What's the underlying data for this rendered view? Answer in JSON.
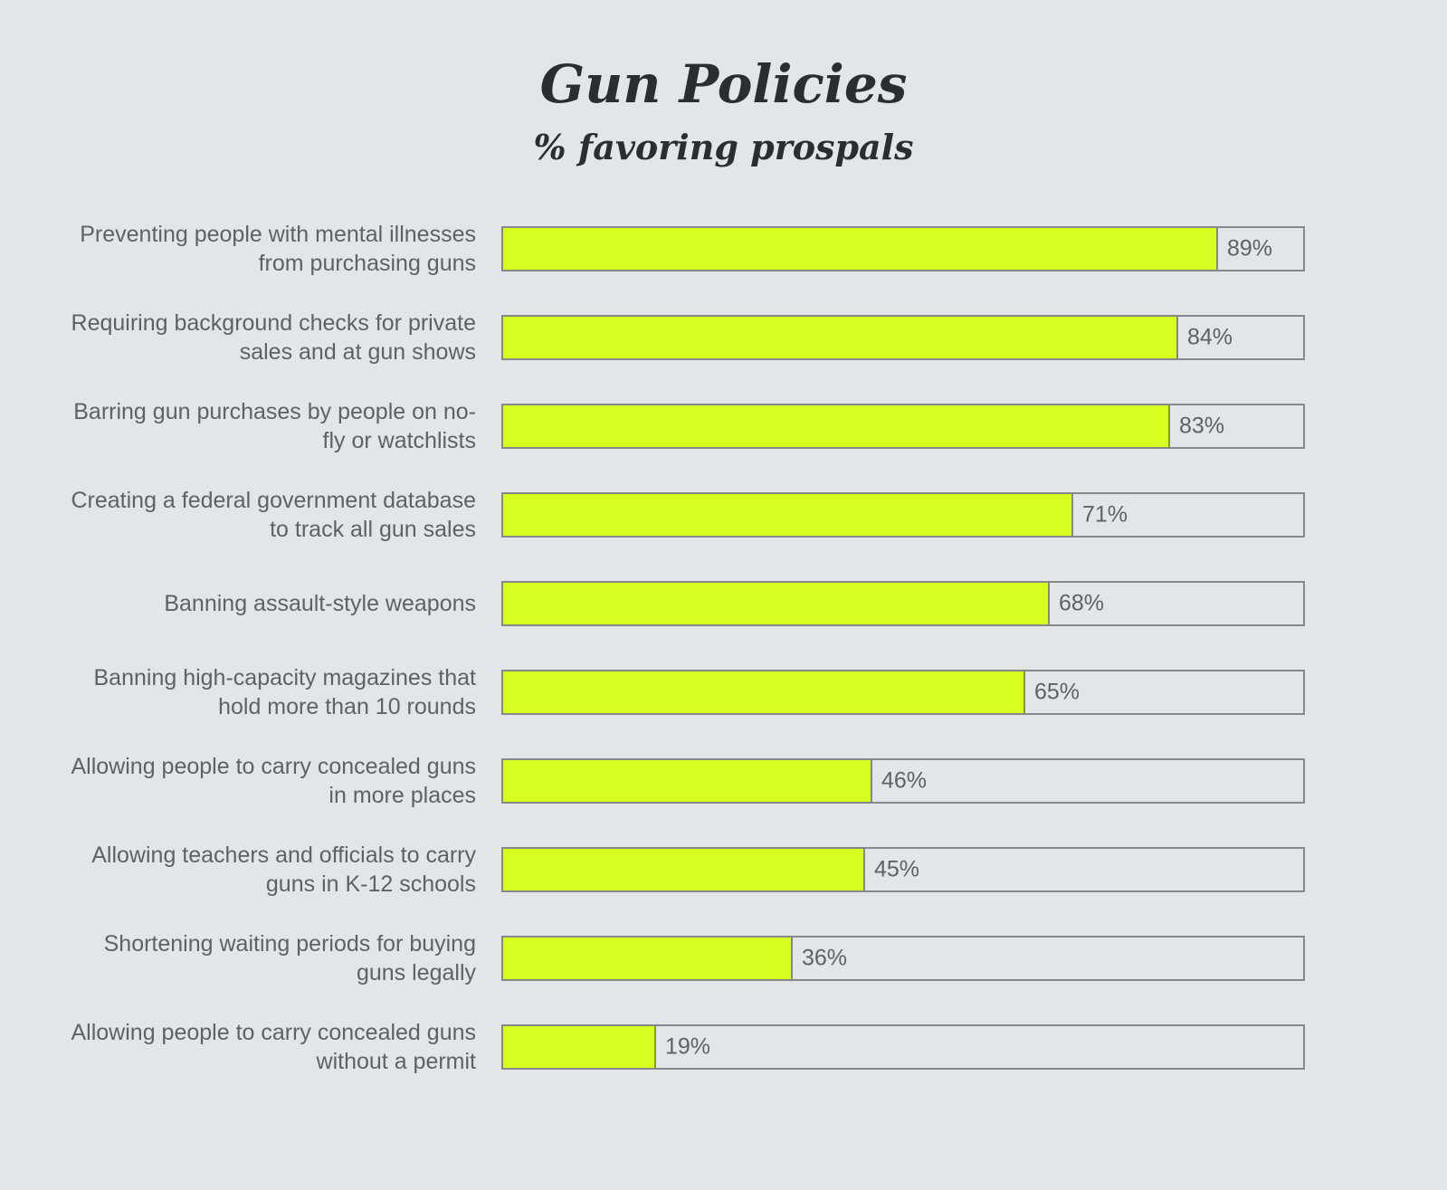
{
  "chart_data": {
    "type": "bar",
    "orientation": "horizontal",
    "title": "Gun Policies",
    "subtitle": "% favoring prospals",
    "categories": [
      "Preventing people with mental illnesses from purchasing guns",
      "Requiring background checks for private sales and at gun shows",
      "Barring gun purchases by people on no-fly or watchlists",
      "Creating a federal government database to track all gun sales",
      "Banning assault-style weapons",
      "Banning high-capacity magazines that hold more than 10 rounds",
      "Allowing people to carry concealed guns in more places",
      "Allowing teachers and officials to carry guns in K-12 schools",
      "Shortening waiting periods for buying guns legally",
      "Allowing people to carry concealed guns without a permit"
    ],
    "label_lines": [
      [
        "Preventing people with mental illnesses",
        "from purchasing guns"
      ],
      [
        "Requiring background checks for private",
        "sales and at gun shows"
      ],
      [
        "Barring gun purchases by people on no-",
        "fly or watchlists"
      ],
      [
        "Creating a federal government database",
        "to track all gun sales"
      ],
      [
        "Banning assault-style weapons"
      ],
      [
        "Banning high-capacity magazines that",
        "hold more than 10 rounds"
      ],
      [
        "Allowing people to carry concealed guns",
        "in more places"
      ],
      [
        "Allowing teachers and officials to carry",
        "guns in K-12 schools"
      ],
      [
        "Shortening waiting periods for buying",
        "guns legally"
      ],
      [
        "Allowing people to carry concealed guns",
        "without a permit"
      ]
    ],
    "values": [
      89,
      84,
      83,
      71,
      68,
      65,
      46,
      45,
      36,
      19
    ],
    "value_labels": [
      "89%",
      "84%",
      "83%",
      "71%",
      "68%",
      "65%",
      "46%",
      "45%",
      "36%",
      "19%"
    ],
    "xlim": [
      0,
      100
    ],
    "grid": false,
    "colors": {
      "bar": "#d5ff1f",
      "track_border": "#85888b",
      "background": "#e1e6e9",
      "label_text": "#5e6268",
      "title_text": "#2b2e31"
    }
  }
}
